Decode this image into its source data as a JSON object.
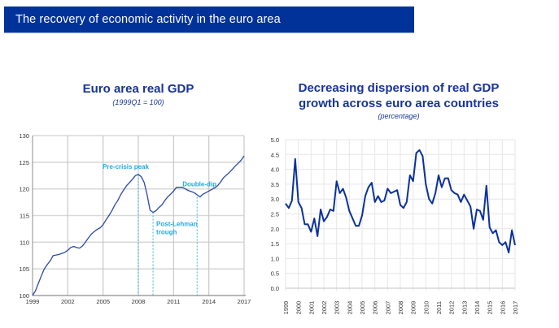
{
  "banner": {
    "title": "The recovery of economic activity in the euro area"
  },
  "colors": {
    "banner": "#003299",
    "title": "#17349a",
    "line_left": "#2a4aa8",
    "line_right": "#0b319b",
    "annotation": "#21a9e1",
    "grid": "#d9d9d9"
  },
  "chart_data": [
    {
      "type": "line",
      "title": "Euro area real GDP",
      "subtitle": "(1999Q1 = 100)",
      "xlabel": "",
      "ylabel": "",
      "xlim": [
        1999,
        2017
      ],
      "ylim": [
        100,
        130
      ],
      "grid": true,
      "x_ticks": [
        "1999",
        "2002",
        "2005",
        "2008",
        "2011",
        "2014",
        "2017"
      ],
      "y_ticks": [
        "100",
        "105",
        "110",
        "115",
        "120",
        "125",
        "130"
      ],
      "series": [
        {
          "name": "Euro area real GDP",
          "x": [
            1999.0,
            1999.25,
            1999.5,
            1999.75,
            2000.0,
            2000.25,
            2000.5,
            2000.75,
            2001.0,
            2001.25,
            2001.5,
            2001.75,
            2002.0,
            2002.25,
            2002.5,
            2002.75,
            2003.0,
            2003.25,
            2003.5,
            2003.75,
            2004.0,
            2004.25,
            2004.5,
            2004.75,
            2005.0,
            2005.25,
            2005.5,
            2005.75,
            2006.0,
            2006.25,
            2006.5,
            2006.75,
            2007.0,
            2007.25,
            2007.5,
            2007.75,
            2008.0,
            2008.25,
            2008.5,
            2008.75,
            2009.0,
            2009.25,
            2009.5,
            2009.75,
            2010.0,
            2010.25,
            2010.5,
            2010.75,
            2011.0,
            2011.25,
            2011.5,
            2011.75,
            2012.0,
            2012.25,
            2012.5,
            2012.75,
            2013.0,
            2013.25,
            2013.5,
            2013.75,
            2014.0,
            2014.25,
            2014.5,
            2014.75,
            2015.0,
            2015.25,
            2015.5,
            2015.75,
            2016.0,
            2016.25,
            2016.5,
            2016.75,
            2017.0
          ],
          "values": [
            100.0,
            100.9,
            102.3,
            103.7,
            105.0,
            105.8,
            106.5,
            107.5,
            107.6,
            107.7,
            107.9,
            108.1,
            108.5,
            109.0,
            109.2,
            109.0,
            108.9,
            109.3,
            110.0,
            110.8,
            111.5,
            112.0,
            112.4,
            112.7,
            113.3,
            114.2,
            115.0,
            115.9,
            117.0,
            117.8,
            118.9,
            119.8,
            120.6,
            121.2,
            121.8,
            122.5,
            122.7,
            122.3,
            121.2,
            118.9,
            116.0,
            115.6,
            115.9,
            116.5,
            117.0,
            117.8,
            118.5,
            119.0,
            119.6,
            120.3,
            120.3,
            120.3,
            120.0,
            119.7,
            119.5,
            119.3,
            118.9,
            118.5,
            119.0,
            119.3,
            119.6,
            119.9,
            120.2,
            120.6,
            121.3,
            122.1,
            122.6,
            123.1,
            123.7,
            124.3,
            124.8,
            125.4,
            126.2
          ]
        }
      ],
      "annotations": [
        {
          "label": "Pre-crisis peak",
          "x": 2008.0,
          "y": 122.7
        },
        {
          "label": "Post-Lehman trough",
          "x": 2009.25,
          "y": 115.6
        },
        {
          "label": "Double-dip",
          "x": 2013.0,
          "y": 118.5
        }
      ]
    },
    {
      "type": "line",
      "title": "Decreasing dispersion of real GDP growth across euro area countries",
      "subtitle": "(percentage)",
      "xlabel": "",
      "ylabel": "",
      "xlim": [
        1999,
        2017
      ],
      "ylim": [
        0.0,
        5.0
      ],
      "grid": true,
      "x_ticks": [
        "1999",
        "2000",
        "2001",
        "2002",
        "2003",
        "2004",
        "2005",
        "2006",
        "2007",
        "2008",
        "2009",
        "2010",
        "2011",
        "2012",
        "2013",
        "2014",
        "2015",
        "2016",
        "2017"
      ],
      "y_ticks": [
        "0.0",
        "0.5",
        "1.0",
        "1.5",
        "2.0",
        "2.5",
        "3.0",
        "3.5",
        "4.0",
        "4.5",
        "5.0"
      ],
      "series": [
        {
          "name": "Dispersion of real GDP growth",
          "x": [
            1999.0,
            1999.25,
            1999.5,
            1999.75,
            2000.0,
            2000.25,
            2000.5,
            2000.75,
            2001.0,
            2001.25,
            2001.5,
            2001.75,
            2002.0,
            2002.25,
            2002.5,
            2002.75,
            2003.0,
            2003.25,
            2003.5,
            2003.75,
            2004.0,
            2004.25,
            2004.5,
            2004.75,
            2005.0,
            2005.25,
            2005.5,
            2005.75,
            2006.0,
            2006.25,
            2006.5,
            2006.75,
            2007.0,
            2007.25,
            2007.5,
            2007.75,
            2008.0,
            2008.25,
            2008.5,
            2008.75,
            2009.0,
            2009.25,
            2009.5,
            2009.75,
            2010.0,
            2010.25,
            2010.5,
            2010.75,
            2011.0,
            2011.25,
            2011.5,
            2011.75,
            2012.0,
            2012.25,
            2012.5,
            2012.75,
            2013.0,
            2013.25,
            2013.5,
            2013.75,
            2014.0,
            2014.25,
            2014.5,
            2014.75,
            2015.0,
            2015.25,
            2015.5,
            2015.75,
            2016.0,
            2016.25,
            2016.5,
            2016.75,
            2017.0
          ],
          "values": [
            2.85,
            2.7,
            2.95,
            4.35,
            2.9,
            2.7,
            2.15,
            2.15,
            1.9,
            2.35,
            1.75,
            2.65,
            2.25,
            2.4,
            2.65,
            2.6,
            3.6,
            3.2,
            3.35,
            3.05,
            2.6,
            2.35,
            2.1,
            2.1,
            2.45,
            3.1,
            3.4,
            3.55,
            2.9,
            3.1,
            2.9,
            2.95,
            3.35,
            3.2,
            3.25,
            3.3,
            2.8,
            2.7,
            2.9,
            3.8,
            3.6,
            4.55,
            4.65,
            4.45,
            3.5,
            3.0,
            2.85,
            3.2,
            3.8,
            3.4,
            3.7,
            3.7,
            3.3,
            3.2,
            3.15,
            2.9,
            3.15,
            2.95,
            2.75,
            2.0,
            2.65,
            2.6,
            2.3,
            3.45,
            2.05,
            1.85,
            1.95,
            1.55,
            1.45,
            1.55,
            1.2,
            1.95,
            1.45
          ]
        }
      ]
    }
  ]
}
